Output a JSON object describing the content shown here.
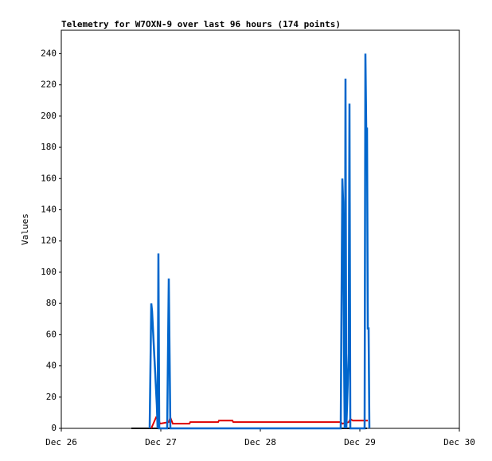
{
  "chart_data": {
    "type": "line",
    "title": "Telemetry for W7OXN-9 over last 96 hours (174 points)",
    "y_label": "Values",
    "xlim": [
      0,
      96
    ],
    "xticks": [
      {
        "value": 0,
        "label": "Dec 26"
      },
      {
        "value": 24,
        "label": "Dec 27"
      },
      {
        "value": 48,
        "label": "Dec 28"
      },
      {
        "value": 72,
        "label": "Dec 29"
      },
      {
        "value": 96,
        "label": "Dec 30"
      }
    ],
    "ylim": [
      0,
      255
    ],
    "yticks": [
      0,
      20,
      40,
      60,
      80,
      100,
      120,
      140,
      160,
      180,
      200,
      220,
      240
    ],
    "grid": false,
    "series": [
      {
        "color": "#000000",
        "x": [
          16.9,
          73.73
        ],
        "values": [
          0,
          0
        ]
      },
      {
        "color": "#dd0000",
        "x": [
          21.7,
          22.85,
          23.42,
          23.81,
          25.92,
          26.3,
          26.88,
          30.91,
          31.1,
          37.82,
          38.02,
          41.28,
          41.47,
          67.39,
          67.78,
          69.31,
          69.7,
          70.27,
          73.92
        ],
        "values": [
          0,
          7,
          6,
          3,
          4,
          7,
          3,
          3,
          4,
          4,
          5,
          5,
          4,
          4,
          3,
          4,
          6,
          5,
          5
        ]
      },
      {
        "color": "#0066cc",
        "x": [
          21.31,
          21.7,
          21.89,
          22.08,
          22.27,
          22.46,
          22.66,
          22.85,
          23.04,
          23.23,
          23.42,
          23.62,
          25.54,
          25.73,
          25.92,
          26.11,
          26.3,
          67.39,
          67.58,
          67.78,
          67.97,
          68.16,
          68.35,
          68.54,
          68.74,
          69.31,
          69.5,
          69.7,
          73.15,
          73.34,
          73.54,
          73.73,
          73.92,
          74.11,
          74.3
        ],
        "values": [
          0,
          80,
          75,
          65,
          55,
          45,
          35,
          25,
          15,
          0,
          112,
          0,
          0,
          48,
          96,
          48,
          0,
          0,
          80,
          160,
          145,
          55,
          0,
          224,
          0,
          48,
          208,
          0,
          0,
          240,
          192,
          192,
          64,
          64,
          0
        ]
      }
    ]
  }
}
